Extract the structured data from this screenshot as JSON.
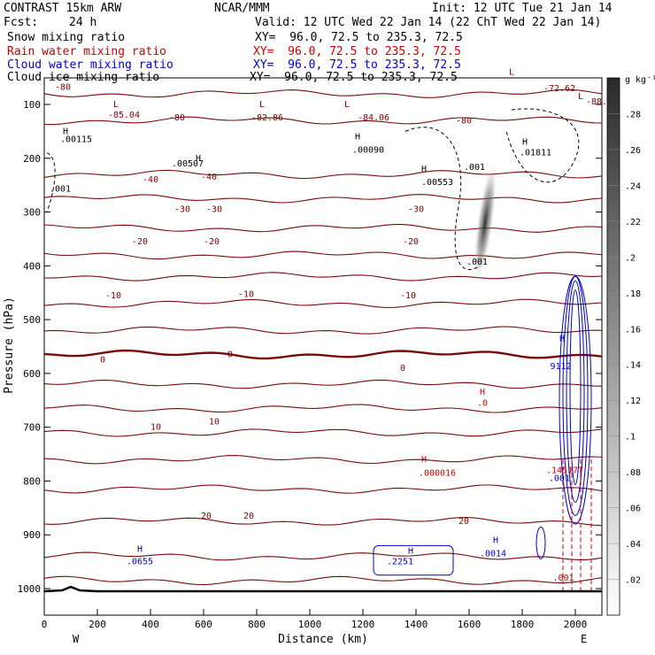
{
  "header": {
    "model": "CONTRAST 15km ARW",
    "center": "NCAR/MMM",
    "init": "Init: 12 UTC Tue 21 Jan 14",
    "fcst_label": "Fcst:",
    "fcst_value": "24 h",
    "valid": "Valid: 12 UTC Wed 22 Jan 14 (22 ChT Wed 22 Jan 14)",
    "legend": [
      {
        "label": "Snow mixing ratio",
        "xy": "XY=  96.0, 72.5 to 235.3, 72.5",
        "color": "#000000"
      },
      {
        "label": "Rain water mixing ratio",
        "xy": "XY=  96.0, 72.5 to 235.3, 72.5",
        "color": "#cc0000"
      },
      {
        "label": "Cloud water mixing ratio",
        "xy": "XY=  96.0, 72.5 to 235.3, 72.5",
        "color": "#0000cc"
      },
      {
        "label": "Cloud ice mixing ratio",
        "xy": "XY=  96.0, 72.5 to 235.3, 72.5",
        "color": "#000000"
      }
    ]
  },
  "chart_data": {
    "type": "cross-section",
    "xlabel": "Distance (km)",
    "ylabel": "Pressure (hPa)",
    "xlim": [
      0,
      2100
    ],
    "ylim": [
      1050,
      40
    ],
    "x_ticks": [
      0,
      200,
      400,
      600,
      800,
      1000,
      1200,
      1400,
      1600,
      1800,
      2000
    ],
    "y_ticks": [
      100,
      200,
      300,
      400,
      500,
      600,
      700,
      800,
      900,
      1000
    ],
    "x_end_labels": {
      "left": "W",
      "right": "E"
    },
    "colorbar": {
      "unit": "g kg⁻¹",
      "ticks": [
        ".02",
        ".04",
        ".06",
        ".08",
        ".1",
        ".12",
        ".14",
        ".16",
        ".18",
        ".2",
        ".22",
        ".24",
        ".26",
        ".28"
      ]
    },
    "temperature_contours": [
      {
        "p": 80,
        "label": "-80"
      },
      {
        "p": 130,
        "label": "-80"
      },
      {
        "p": 230,
        "label": "-40"
      },
      {
        "p": 275,
        "label": "-30"
      },
      {
        "p": 330,
        "label": "-20"
      },
      {
        "p": 380,
        "label": ""
      },
      {
        "p": 420,
        "label": "-10"
      },
      {
        "p": 470,
        "label": ""
      },
      {
        "p": 520,
        "label": ""
      },
      {
        "p": 565,
        "label": "0"
      },
      {
        "p": 620,
        "label": ""
      },
      {
        "p": 665,
        "label": ""
      },
      {
        "p": 710,
        "label": "10"
      },
      {
        "p": 760,
        "label": ""
      },
      {
        "p": 815,
        "label": ""
      },
      {
        "p": 875,
        "label": "20"
      },
      {
        "p": 940,
        "label": ""
      },
      {
        "p": 985,
        "label": ""
      }
    ],
    "annotations": [
      {
        "x": 70,
        "p": 73,
        "text": "-80",
        "color": "#800000"
      },
      {
        "x": 300,
        "p": 125,
        "text": "-85.04",
        "color": "#800000"
      },
      {
        "x": 500,
        "p": 130,
        "text": "-80",
        "color": "#800000"
      },
      {
        "x": 840,
        "p": 130,
        "text": "-82.86",
        "color": "#800000"
      },
      {
        "x": 1240,
        "p": 130,
        "text": "-84.06",
        "color": "#800000"
      },
      {
        "x": 1580,
        "p": 135,
        "text": "-80",
        "color": "#800000"
      },
      {
        "x": 1940,
        "p": 75,
        "text": "-72.62",
        "color": "#800000"
      },
      {
        "x": 2080,
        "p": 100,
        "text": "-88.",
        "color": "#800000"
      },
      {
        "x": 1400,
        "p": 300,
        "text": "-30",
        "color": "#800000"
      },
      {
        "x": 640,
        "p": 300,
        "text": "-30",
        "color": "#800000"
      },
      {
        "x": 520,
        "p": 300,
        "text": "-30",
        "color": "#800000"
      },
      {
        "x": 400,
        "p": 245,
        "text": "-40",
        "color": "#800000"
      },
      {
        "x": 620,
        "p": 240,
        "text": "-40",
        "color": "#800000"
      },
      {
        "x": 1380,
        "p": 360,
        "text": "-20",
        "color": "#800000"
      },
      {
        "x": 360,
        "p": 360,
        "text": "-20",
        "color": "#800000"
      },
      {
        "x": 630,
        "p": 360,
        "text": "-20",
        "color": "#800000"
      },
      {
        "x": 260,
        "p": 460,
        "text": "-10",
        "color": "#800000"
      },
      {
        "x": 760,
        "p": 458,
        "text": "-10",
        "color": "#800000"
      },
      {
        "x": 1370,
        "p": 460,
        "text": "-10",
        "color": "#800000"
      },
      {
        "x": 220,
        "p": 580,
        "text": "0",
        "color": "#800000"
      },
      {
        "x": 700,
        "p": 570,
        "text": "0",
        "color": "#800000"
      },
      {
        "x": 1350,
        "p": 595,
        "text": "0",
        "color": "#800000"
      },
      {
        "x": 420,
        "p": 705,
        "text": "10",
        "color": "#800000"
      },
      {
        "x": 640,
        "p": 695,
        "text": "10",
        "color": "#800000"
      },
      {
        "x": 610,
        "p": 870,
        "text": "20",
        "color": "#800000"
      },
      {
        "x": 770,
        "p": 870,
        "text": "20",
        "color": "#800000"
      },
      {
        "x": 1580,
        "p": 880,
        "text": "20",
        "color": "#800000"
      },
      {
        "x": 120,
        "p": 170,
        "text": ".00115",
        "color": "#000000"
      },
      {
        "x": 540,
        "p": 215,
        "text": ".00507",
        "color": "#000000"
      },
      {
        "x": 1220,
        "p": 190,
        "text": ".00090",
        "color": "#000000"
      },
      {
        "x": 1850,
        "p": 195,
        "text": ".01811",
        "color": "#000000"
      },
      {
        "x": 1480,
        "p": 250,
        "text": ".00553",
        "color": "#000000"
      },
      {
        "x": 60,
        "p": 262,
        "text": ".001",
        "color": "#000000"
      },
      {
        "x": 1620,
        "p": 222,
        "text": ".001",
        "color": "#000000"
      },
      {
        "x": 1630,
        "p": 398,
        "text": ".001",
        "color": "#000000"
      },
      {
        "x": 1650,
        "p": 660,
        "text": ".0",
        "color": "#cc0000"
      },
      {
        "x": 1480,
        "p": 790,
        "text": ".000016",
        "color": "#cc0000"
      },
      {
        "x": 1960,
        "p": 785,
        "text": ".145177",
        "color": "#cc0000"
      },
      {
        "x": 1955,
        "p": 985,
        "text": ".001",
        "color": "#cc0000"
      },
      {
        "x": 360,
        "p": 955,
        "text": ".0655",
        "color": "#0000cc"
      },
      {
        "x": 1340,
        "p": 955,
        "text": ".2251",
        "color": "#0000cc"
      },
      {
        "x": 1690,
        "p": 940,
        "text": ".0014",
        "color": "#0000cc"
      },
      {
        "x": 1945,
        "p": 592,
        "text": "9112",
        "color": "#0000cc"
      },
      {
        "x": 1940,
        "p": 800,
        "text": ".001",
        "color": "#0000cc"
      }
    ],
    "hl_markers": [
      {
        "x": 270,
        "p": 105,
        "text": "L",
        "color": "#800000"
      },
      {
        "x": 820,
        "p": 105,
        "text": "L",
        "color": "#800000"
      },
      {
        "x": 1140,
        "p": 105,
        "text": "L",
        "color": "#800000"
      },
      {
        "x": 1760,
        "p": 45,
        "text": "L",
        "color": "#800000"
      },
      {
        "x": 2020,
        "p": 90,
        "text": "L",
        "color": "#800000"
      },
      {
        "x": 80,
        "p": 155,
        "text": "H",
        "color": "#000000"
      },
      {
        "x": 580,
        "p": 205,
        "text": "H",
        "color": "#000000"
      },
      {
        "x": 1180,
        "p": 165,
        "text": "H",
        "color": "#000000"
      },
      {
        "x": 1810,
        "p": 175,
        "text": "H",
        "color": "#000000"
      },
      {
        "x": 1430,
        "p": 225,
        "text": "H",
        "color": "#000000"
      },
      {
        "x": 1650,
        "p": 640,
        "text": "H",
        "color": "#cc0000"
      },
      {
        "x": 1430,
        "p": 765,
        "text": "H",
        "color": "#cc0000"
      },
      {
        "x": 1950,
        "p": 540,
        "text": "H",
        "color": "#0000cc"
      },
      {
        "x": 360,
        "p": 932,
        "text": "H",
        "color": "#0000cc"
      },
      {
        "x": 1380,
        "p": 935,
        "text": "H",
        "color": "#0000cc"
      },
      {
        "x": 1700,
        "p": 915,
        "text": "H",
        "color": "#0000cc"
      }
    ],
    "snow_max_x": 1660,
    "snow_p_range": [
      230,
      410
    ],
    "convective_column_x": 2000
  }
}
